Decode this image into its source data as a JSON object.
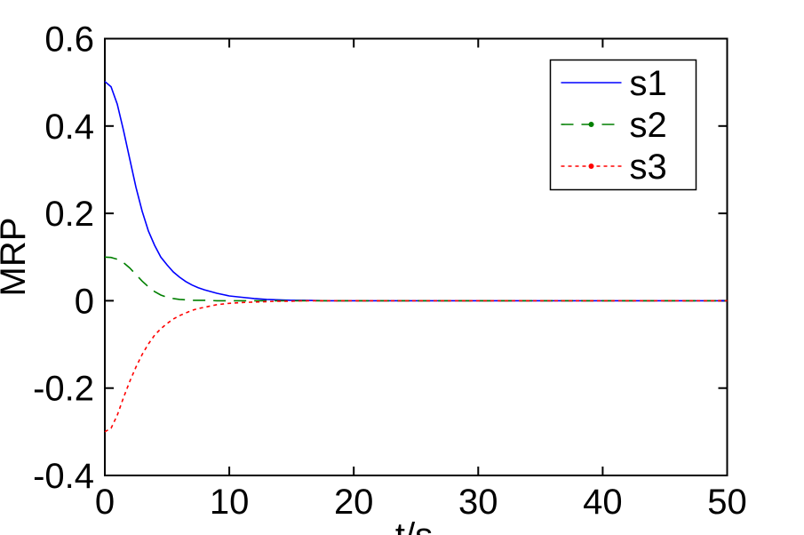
{
  "figure": {
    "background": "#ffffff",
    "axis_color": "#000000",
    "text_color": "#000000"
  },
  "chart_data": {
    "type": "line",
    "title": "",
    "xlabel": "t/s",
    "ylabel": "MRP",
    "xlim": [
      0,
      50
    ],
    "ylim": [
      -0.4,
      0.6
    ],
    "x_tick_labels": [
      "0",
      "10",
      "20",
      "30",
      "40",
      "50"
    ],
    "x_tick_values": [
      0,
      10,
      20,
      30,
      40,
      50
    ],
    "y_tick_labels": [
      "-0.4",
      "-0.2",
      "0",
      "0.2",
      "0.4",
      "0.6"
    ],
    "y_tick_values": [
      -0.4,
      -0.2,
      0,
      0.2,
      0.4,
      0.6
    ],
    "grid": false,
    "box": true,
    "legend_position": "upper right",
    "x": [
      0,
      0.5,
      1,
      1.5,
      2,
      2.5,
      3,
      3.5,
      4,
      4.5,
      5,
      5.5,
      6,
      6.5,
      7,
      7.5,
      8,
      9,
      10,
      11,
      12,
      13,
      14,
      15,
      16,
      18,
      20,
      25,
      30,
      35,
      40,
      45,
      50
    ],
    "series": [
      {
        "name": "s1",
        "color": "#0000ff",
        "style": "solid",
        "marker": "none",
        "values": [
          0.502,
          0.49,
          0.45,
          0.39,
          0.325,
          0.26,
          0.205,
          0.16,
          0.127,
          0.1,
          0.082,
          0.066,
          0.054,
          0.044,
          0.036,
          0.03,
          0.025,
          0.017,
          0.011,
          0.008,
          0.005,
          0.003,
          0.002,
          0.001,
          0.001,
          0,
          0,
          0,
          0,
          0,
          0,
          0,
          0
        ]
      },
      {
        "name": "s2",
        "color": "#007f00",
        "style": "long-dash",
        "marker": "dot",
        "values": [
          0.1,
          0.099,
          0.095,
          0.087,
          0.075,
          0.06,
          0.045,
          0.032,
          0.021,
          0.013,
          0.008,
          0.005,
          0.003,
          0.002,
          0.001,
          0.001,
          0.001,
          0,
          0,
          0,
          0,
          0,
          0,
          0,
          0,
          0,
          0,
          0,
          0,
          0,
          0,
          0,
          0
        ]
      },
      {
        "name": "s3",
        "color": "#ff0000",
        "style": "short-dash",
        "marker": "dot",
        "values": [
          -0.3,
          -0.292,
          -0.262,
          -0.222,
          -0.185,
          -0.152,
          -0.123,
          -0.099,
          -0.079,
          -0.064,
          -0.052,
          -0.042,
          -0.034,
          -0.028,
          -0.022,
          -0.018,
          -0.015,
          -0.009,
          -0.006,
          -0.004,
          -0.003,
          -0.002,
          -0.001,
          -0.001,
          0,
          0,
          0,
          0,
          0,
          0,
          0,
          0,
          0
        ]
      }
    ]
  }
}
